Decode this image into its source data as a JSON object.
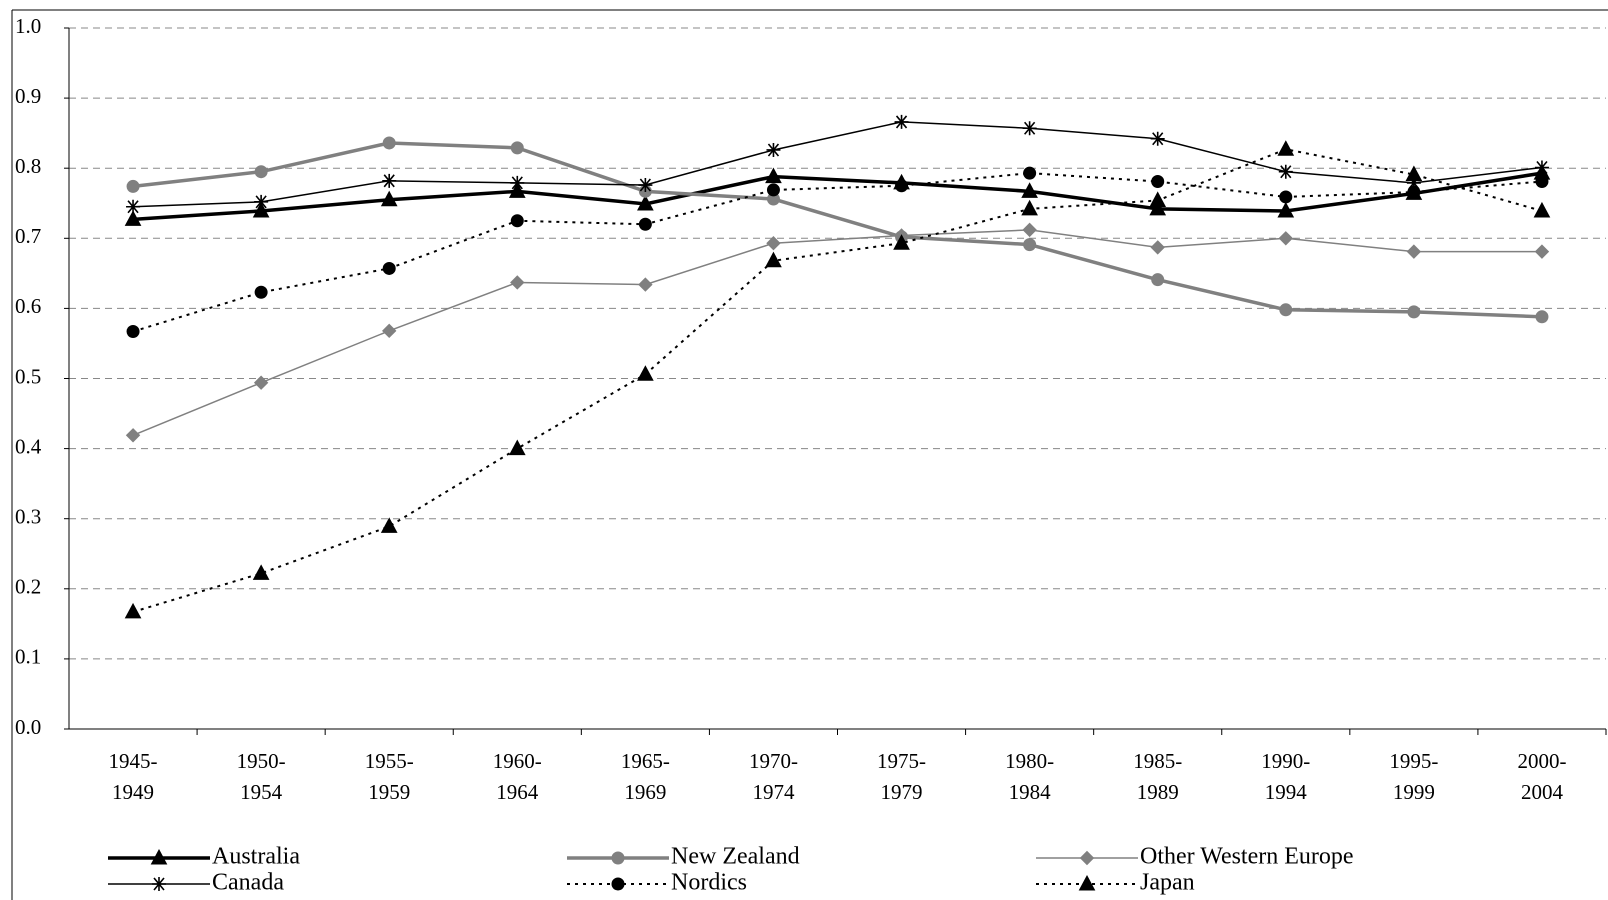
{
  "chart_data": {
    "type": "line",
    "categories": [
      "1945-1949",
      "1950-1954",
      "1955-1959",
      "1960-1964",
      "1965-1969",
      "1970-1974",
      "1975-1979",
      "1980-1984",
      "1985-1989",
      "1990-1994",
      "1995-1999",
      "2000-2004"
    ],
    "ylim": [
      0,
      1
    ],
    "yticks": [
      {
        "value": 0,
        "label": "0.0"
      },
      0.1,
      0.2,
      0.3,
      0.4,
      0.5,
      0.6,
      0.7,
      0.8,
      0.9,
      {
        "value": 1,
        "label": "1.0"
      }
    ],
    "grid": true,
    "legend": "bottom",
    "series": [
      {
        "name": "Australia",
        "color": "#000000",
        "width": 3.5,
        "dash": "solid",
        "marker": "triangle",
        "values": [
          0.727,
          0.739,
          0.755,
          0.767,
          0.749,
          0.788,
          0.779,
          0.767,
          0.742,
          0.739,
          0.764,
          0.793
        ]
      },
      {
        "name": "New Zealand",
        "color": "#808080",
        "width": 3.5,
        "dash": "solid",
        "marker": "circle",
        "values": [
          0.774,
          0.795,
          0.836,
          0.829,
          0.767,
          0.756,
          0.702,
          0.691,
          0.641,
          0.598,
          0.595,
          0.588
        ]
      },
      {
        "name": "Other Western Europe",
        "color": "#808080",
        "width": 1.5,
        "dash": "solid",
        "marker": "diamond",
        "values": [
          0.419,
          0.494,
          0.568,
          0.637,
          0.634,
          0.693,
          0.704,
          0.712,
          0.687,
          0.7,
          0.681,
          0.681
        ]
      },
      {
        "name": "Canada",
        "color": "#000000",
        "width": 1.5,
        "dash": "solid",
        "marker": "star",
        "values": [
          0.745,
          0.752,
          0.782,
          0.779,
          0.776,
          0.826,
          0.866,
          0.857,
          0.842,
          0.795,
          0.779,
          0.801
        ]
      },
      {
        "name": "Nordics",
        "color": "#000000",
        "width": 2,
        "dash": "dotted",
        "marker": "circle",
        "values": [
          0.567,
          0.623,
          0.657,
          0.725,
          0.72,
          0.769,
          0.775,
          0.793,
          0.781,
          0.759,
          0.766,
          0.781
        ]
      },
      {
        "name": "Japan",
        "color": "#000000",
        "width": 2,
        "dash": "dotted",
        "marker": "triangle",
        "values": [
          0.167,
          0.222,
          0.289,
          0.4,
          0.506,
          0.668,
          0.693,
          0.742,
          0.754,
          0.827,
          0.791,
          0.739
        ]
      }
    ]
  }
}
